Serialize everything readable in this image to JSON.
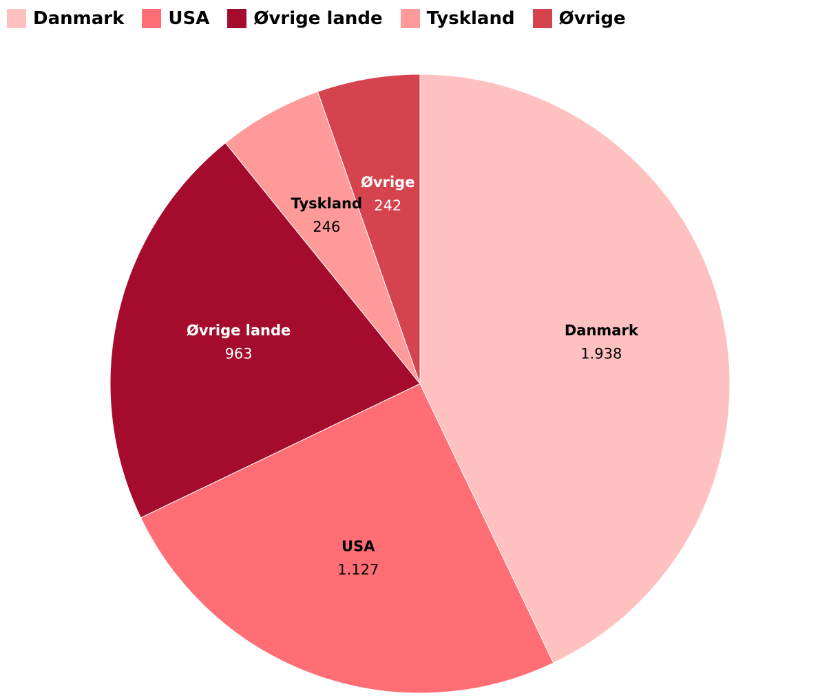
{
  "chart_data": {
    "type": "pie",
    "categories": [
      "Danmark",
      "USA",
      "Øvrige lande",
      "Tyskland",
      "Øvrige"
    ],
    "values": [
      1938,
      1127,
      963,
      246,
      242
    ],
    "value_labels": [
      "1.938",
      "1.127",
      "963",
      "246",
      "242"
    ],
    "colors": [
      "#ffc0c0",
      "#ff6e74",
      "#a50b2d",
      "#ff9a9a",
      "#d5434f"
    ],
    "legend": "top-left"
  }
}
